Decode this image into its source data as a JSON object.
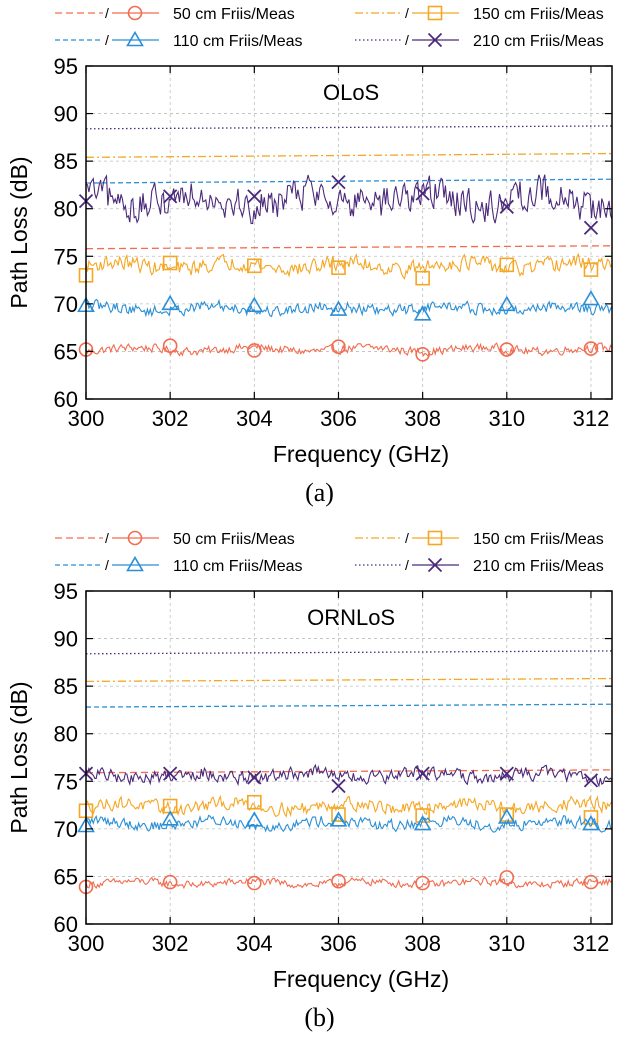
{
  "chart_data": [
    {
      "type": "line",
      "title": "OLoS",
      "caption": "(a)",
      "xlabel": "Frequency (GHz)",
      "ylabel": "Path Loss (dB)",
      "xlim": [
        300,
        312.5
      ],
      "ylim": [
        60,
        95
      ],
      "xticks": [
        300,
        302,
        304,
        306,
        308,
        310,
        312
      ],
      "yticks": [
        60,
        65,
        70,
        75,
        80,
        85,
        90,
        95
      ],
      "grid": true,
      "legend_position": "top",
      "legend": [
        {
          "label": "50 cm Friis/Meas",
          "color": "#f26c4f",
          "marker": "circle",
          "sep": "/"
        },
        {
          "label": "150 cm Friis/Meas",
          "color": "#f5a623",
          "marker": "square",
          "sep": "/"
        },
        {
          "label": "110 cm Friis/Meas",
          "color": "#2a8fd6",
          "marker": "triangle",
          "sep": "/"
        },
        {
          "label": "210 cm Friis/Meas",
          "color": "#4b2a7b",
          "marker": "x",
          "sep": "/"
        }
      ],
      "series": [
        {
          "distance": "50 cm",
          "color": "#f26c4f",
          "marker": "circle",
          "friis": [
            75.8,
            76.1
          ],
          "meas": {
            "mean": 65.2,
            "noise": 0.45,
            "marker_x": [
              300,
              302,
              304,
              306,
              308,
              310,
              312
            ],
            "marker_y": [
              65.2,
              65.6,
              65.1,
              65.5,
              64.7,
              65.2,
              65.3
            ]
          }
        },
        {
          "distance": "150 cm",
          "color": "#f5a623",
          "marker": "square",
          "friis": [
            85.4,
            85.8
          ],
          "meas": {
            "mean": 74.0,
            "noise": 0.8,
            "marker_x": [
              300,
              302,
              304,
              306,
              308,
              310,
              312
            ],
            "marker_y": [
              73.0,
              74.3,
              74.0,
              73.8,
              72.7,
              74.1,
              73.6
            ]
          }
        },
        {
          "distance": "110 cm",
          "color": "#2a8fd6",
          "marker": "triangle",
          "friis": [
            82.7,
            83.1
          ],
          "meas": {
            "mean": 69.5,
            "noise": 0.6,
            "marker_x": [
              300,
              302,
              304,
              306,
              308,
              310,
              312
            ],
            "marker_y": [
              69.8,
              70.0,
              69.8,
              69.4,
              68.9,
              69.9,
              70.5
            ]
          }
        },
        {
          "distance": "210 cm",
          "color": "#4b2a7b",
          "marker": "x",
          "friis": [
            88.4,
            88.7
          ],
          "meas": {
            "mean": 81.0,
            "noise": 1.8,
            "marker_x": [
              300,
              302,
              304,
              306,
              308,
              310,
              312
            ],
            "marker_y": [
              80.8,
              81.3,
              81.3,
              82.8,
              81.6,
              80.2,
              78.0
            ]
          }
        }
      ]
    },
    {
      "type": "line",
      "title": "ORNLoS",
      "caption": "(b)",
      "xlabel": "Frequency (GHz)",
      "ylabel": "Path Loss (dB)",
      "xlim": [
        300,
        312.5
      ],
      "ylim": [
        60,
        95
      ],
      "xticks": [
        300,
        302,
        304,
        306,
        308,
        310,
        312
      ],
      "yticks": [
        60,
        65,
        70,
        75,
        80,
        85,
        90,
        95
      ],
      "grid": true,
      "legend_position": "top",
      "legend": [
        {
          "label": "50 cm Friis/Meas",
          "color": "#f26c4f",
          "marker": "circle",
          "sep": "/"
        },
        {
          "label": "150 cm Friis/Meas",
          "color": "#f5a623",
          "marker": "square",
          "sep": "/"
        },
        {
          "label": "110 cm Friis/Meas",
          "color": "#2a8fd6",
          "marker": "triangle",
          "sep": "/"
        },
        {
          "label": "210 cm Friis/Meas",
          "color": "#4b2a7b",
          "marker": "x",
          "sep": "/"
        }
      ],
      "series": [
        {
          "distance": "50 cm",
          "color": "#f26c4f",
          "marker": "circle",
          "friis": [
            75.9,
            76.2
          ],
          "meas": {
            "mean": 64.3,
            "noise": 0.4,
            "marker_x": [
              300,
              302,
              304,
              306,
              308,
              310,
              312
            ],
            "marker_y": [
              63.9,
              64.4,
              64.3,
              64.5,
              64.3,
              64.9,
              64.4
            ]
          }
        },
        {
          "distance": "150 cm",
          "color": "#f5a623",
          "marker": "square",
          "friis": [
            85.5,
            85.8
          ],
          "meas": {
            "mean": 72.4,
            "noise": 0.7,
            "marker_x": [
              300,
              302,
              304,
              306,
              308,
              310,
              312
            ],
            "marker_y": [
              71.9,
              72.4,
              72.8,
              71.5,
              71.4,
              71.5,
              71.2
            ]
          }
        },
        {
          "distance": "110 cm",
          "color": "#2a8fd6",
          "marker": "triangle",
          "friis": [
            82.8,
            83.1
          ],
          "meas": {
            "mean": 70.6,
            "noise": 0.6,
            "marker_x": [
              300,
              302,
              304,
              306,
              308,
              310,
              312
            ],
            "marker_y": [
              70.3,
              71.0,
              70.9,
              70.9,
              70.5,
              71.2,
              70.5
            ]
          }
        },
        {
          "distance": "210 cm",
          "color": "#4b2a7b",
          "marker": "x",
          "friis": [
            88.4,
            88.7
          ],
          "meas": {
            "mean": 75.6,
            "noise": 0.7,
            "marker_x": [
              300,
              302,
              304,
              306,
              308,
              310,
              312
            ],
            "marker_y": [
              75.8,
              75.8,
              75.4,
              74.5,
              75.8,
              75.8,
              75.1
            ]
          }
        }
      ]
    }
  ]
}
